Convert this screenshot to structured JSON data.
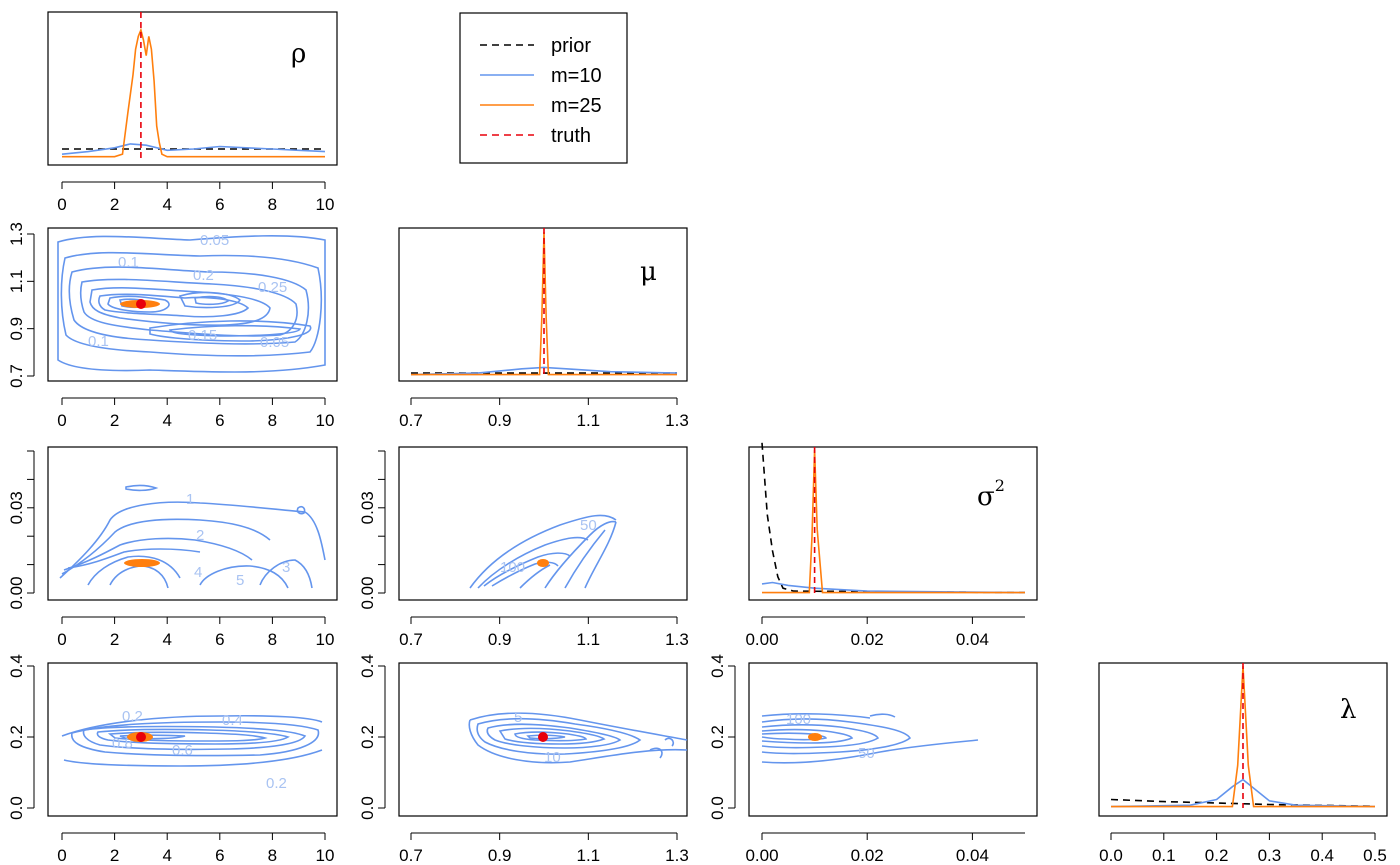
{
  "chart_data": {
    "type": "pairs-plot",
    "description_of_layout": "lower-triangular matrix of marginal densities (diagonal) and bivariate contour plots (off-diagonal)",
    "parameters": [
      {
        "id": "rho",
        "symbol": "ρ",
        "range": [
          0,
          10
        ],
        "ticks": [
          "0",
          "2",
          "4",
          "6",
          "8",
          "10"
        ],
        "truth": 3
      },
      {
        "id": "mu",
        "symbol": "μ",
        "range": [
          0.7,
          1.3
        ],
        "ticks": [
          "0.7",
          "0.9",
          "1.1",
          "1.3"
        ],
        "truth": 1.0
      },
      {
        "id": "sigma2",
        "symbol": "σ",
        "symbol_superscript": "2",
        "range": [
          0,
          0.05
        ],
        "ticks": [
          "0.00",
          "0.02",
          "0.04"
        ],
        "truth": 0.01
      },
      {
        "id": "lambda",
        "symbol": "λ",
        "range": [
          0,
          0.5
        ],
        "ticks": [
          "0.0",
          "0.1",
          "0.2",
          "0.3",
          "0.4",
          "0.5"
        ],
        "truth": 0.25
      }
    ],
    "y_axis_ticks": {
      "mu": [
        "0.7",
        "0.9",
        "1.1",
        "1.3"
      ],
      "sigma2": [
        "0.00",
        "0.03"
      ],
      "lambda": [
        "0.0",
        "0.2",
        "0.4"
      ]
    },
    "legend": {
      "entries": [
        {
          "label": "prior",
          "color": "#000000",
          "dash": "dashed"
        },
        {
          "label": "m=10",
          "color": "#6495ED",
          "dash": "solid"
        },
        {
          "label": "m=25",
          "color": "#FF7F0E",
          "dash": "solid"
        },
        {
          "label": "truth",
          "color": "#E8000B",
          "dash": "dashed"
        }
      ]
    },
    "marginals": {
      "rho": {
        "prior": [
          [
            0,
            0.07
          ],
          [
            10,
            0.07
          ]
        ],
        "m10": [
          [
            0,
            0.03
          ],
          [
            1,
            0.05
          ],
          [
            2,
            0.08
          ],
          [
            2.6,
            0.11
          ],
          [
            3.2,
            0.1
          ],
          [
            4,
            0.06
          ],
          [
            5,
            0.07
          ],
          [
            6,
            0.09
          ],
          [
            7,
            0.08
          ],
          [
            8,
            0.07
          ],
          [
            9,
            0.06
          ],
          [
            10,
            0.05
          ]
        ],
        "m25": [
          [
            0,
            0.01
          ],
          [
            2,
            0.01
          ],
          [
            2.3,
            0.03
          ],
          [
            2.5,
            0.35
          ],
          [
            2.6,
            0.5
          ],
          [
            2.7,
            0.65
          ],
          [
            2.8,
            0.85
          ],
          [
            2.9,
            0.95
          ],
          [
            3.0,
            1.0
          ],
          [
            3.1,
            0.92
          ],
          [
            3.2,
            0.8
          ],
          [
            3.3,
            0.95
          ],
          [
            3.4,
            0.85
          ],
          [
            3.5,
            0.6
          ],
          [
            3.6,
            0.25
          ],
          [
            3.7,
            0.12
          ],
          [
            3.8,
            0.03
          ],
          [
            4.0,
            0.01
          ],
          [
            10,
            0.01
          ]
        ]
      },
      "mu": {
        "prior": [
          [
            0.7,
            0.02
          ],
          [
            1.3,
            0.02
          ]
        ],
        "m10": [
          [
            0.7,
            0.01
          ],
          [
            0.85,
            0.02
          ],
          [
            0.95,
            0.05
          ],
          [
            1.0,
            0.06
          ],
          [
            1.05,
            0.05
          ],
          [
            1.15,
            0.03
          ],
          [
            1.3,
            0.02
          ]
        ],
        "m25": [
          [
            0.7,
            0.01
          ],
          [
            0.99,
            0.01
          ],
          [
            0.995,
            0.4
          ],
          [
            1.0,
            1.0
          ],
          [
            1.005,
            0.4
          ],
          [
            1.01,
            0.01
          ],
          [
            1.3,
            0.01
          ]
        ]
      },
      "sigma2": {
        "prior": [
          [
            0.0,
            1.05
          ],
          [
            0.001,
            0.55
          ],
          [
            0.002,
            0.3
          ],
          [
            0.003,
            0.12
          ],
          [
            0.004,
            0.04
          ],
          [
            0.006,
            0.02
          ],
          [
            0.05,
            0.01
          ]
        ],
        "m10": [
          [
            0.0,
            0.07
          ],
          [
            0.002,
            0.08
          ],
          [
            0.005,
            0.06
          ],
          [
            0.01,
            0.04
          ],
          [
            0.02,
            0.02
          ],
          [
            0.05,
            0.01
          ]
        ],
        "m25": [
          [
            0.0,
            0.01
          ],
          [
            0.009,
            0.01
          ],
          [
            0.0095,
            0.4
          ],
          [
            0.01,
            1.0
          ],
          [
            0.0105,
            0.45
          ],
          [
            0.0115,
            0.01
          ],
          [
            0.05,
            0.01
          ]
        ]
      },
      "lambda": {
        "prior": [
          [
            0.0,
            0.06
          ],
          [
            0.1,
            0.045
          ],
          [
            0.2,
            0.035
          ],
          [
            0.3,
            0.025
          ],
          [
            0.4,
            0.018
          ],
          [
            0.5,
            0.012
          ]
        ],
        "m10": [
          [
            0.0,
            0.01
          ],
          [
            0.15,
            0.02
          ],
          [
            0.2,
            0.06
          ],
          [
            0.23,
            0.15
          ],
          [
            0.25,
            0.2
          ],
          [
            0.27,
            0.14
          ],
          [
            0.3,
            0.05
          ],
          [
            0.35,
            0.02
          ],
          [
            0.5,
            0.01
          ]
        ],
        "m25": [
          [
            0.0,
            0.01
          ],
          [
            0.23,
            0.01
          ],
          [
            0.24,
            0.3
          ],
          [
            0.25,
            1.0
          ],
          [
            0.26,
            0.3
          ],
          [
            0.27,
            0.01
          ],
          [
            0.5,
            0.01
          ]
        ]
      }
    },
    "contour_labels": {
      "rho_mu": [
        "0.05",
        "0.1",
        "0.2",
        "0.25",
        "0.1",
        "0.15",
        "0.05"
      ],
      "rho_sigma2": [
        "1",
        "2",
        "3",
        "4",
        "5"
      ],
      "mu_sigma2": [
        "50",
        "100"
      ],
      "rho_lambda": [
        "0.2",
        "0.4",
        "0.8",
        "0.6",
        "0.2"
      ],
      "mu_lambda": [
        "5",
        "10"
      ],
      "sigma2_lambda": [
        "100",
        "50"
      ]
    }
  }
}
